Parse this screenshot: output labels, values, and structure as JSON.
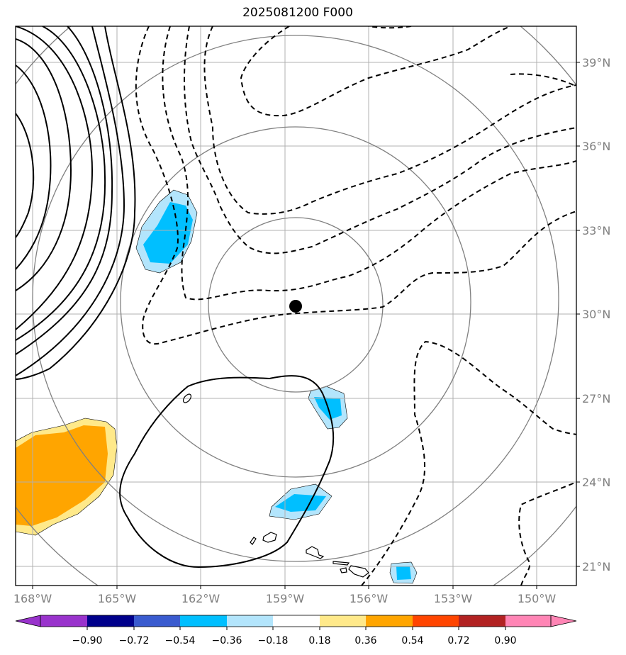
{
  "title": "2025081200 F000",
  "center_marker": {
    "lon": -158.5,
    "lat": 30.2
  },
  "lat_ticks": [
    {
      "label": "21°N"
    },
    {
      "label": "24°N"
    },
    {
      "label": "27°N"
    },
    {
      "label": "30°N"
    },
    {
      "label": "33°N"
    },
    {
      "label": "36°N"
    },
    {
      "label": "39°N"
    }
  ],
  "lon_ticks": [
    {
      "label": "168°W"
    },
    {
      "label": "165°W"
    },
    {
      "label": "162°W"
    },
    {
      "label": "159°W"
    },
    {
      "label": "156°W"
    },
    {
      "label": "153°W"
    },
    {
      "label": "150°W"
    }
  ],
  "colorbar": {
    "levels": [
      "−0.90",
      "−0.72",
      "−0.54",
      "−0.36",
      "−0.18",
      "0.18",
      "0.36",
      "0.54",
      "0.72",
      "0.90"
    ],
    "colors": [
      "#9933cc",
      "#00008b",
      "#3a5bcf",
      "#00bfff",
      "#b3e5fc",
      "#ffffff",
      "#ffe98a",
      "#ffa500",
      "#ff4500",
      "#b22222",
      "#ff85b5"
    ]
  },
  "colors": {
    "grid": "#b0b0b0",
    "range_rings": "#808080",
    "contours": "#000000"
  }
}
